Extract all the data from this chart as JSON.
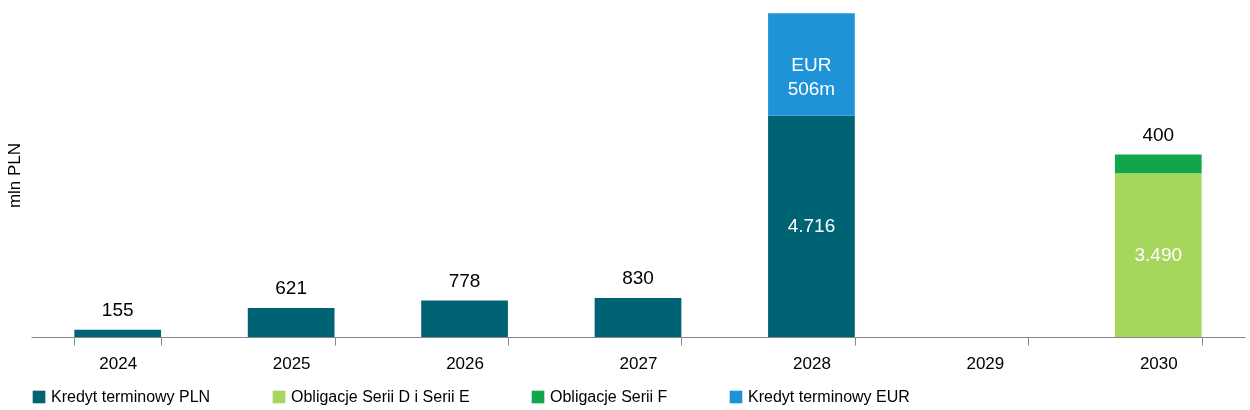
{
  "chart_data": {
    "type": "bar",
    "stacked": true,
    "ylabel": "mln PLN",
    "categories": [
      "2024",
      "2025",
      "2026",
      "2027",
      "2028",
      "2029",
      "2030"
    ],
    "series": [
      {
        "name": "Kredyt terminowy PLN",
        "color": "#006373",
        "values": [
          155,
          621,
          778,
          830,
          4716,
          null,
          null
        ],
        "value_labels": [
          "155",
          "621",
          "778",
          "830",
          "4.716",
          null,
          null
        ]
      },
      {
        "name": "Obligacje Serii D i Serii E",
        "color": "#a6d65c",
        "values": [
          null,
          null,
          null,
          null,
          null,
          null,
          3490
        ],
        "value_labels": [
          null,
          null,
          null,
          null,
          null,
          null,
          "3.490"
        ]
      },
      {
        "name": "Obligacje Serii F",
        "color": "#12a64c",
        "values": [
          null,
          null,
          null,
          null,
          null,
          null,
          400
        ],
        "value_labels": [
          null,
          null,
          null,
          null,
          null,
          null,
          "400"
        ]
      },
      {
        "name": "Kredyt terminowy EUR",
        "color": "#1f93d8",
        "values": [
          null,
          null,
          null,
          null,
          2190,
          null,
          null
        ],
        "value_labels": [
          null,
          null,
          null,
          null,
          "EUR 506m",
          null,
          null
        ]
      }
    ],
    "ylim": [
      0,
      6910
    ],
    "tick_labels": "x",
    "grid": false,
    "legend": "bottom"
  }
}
